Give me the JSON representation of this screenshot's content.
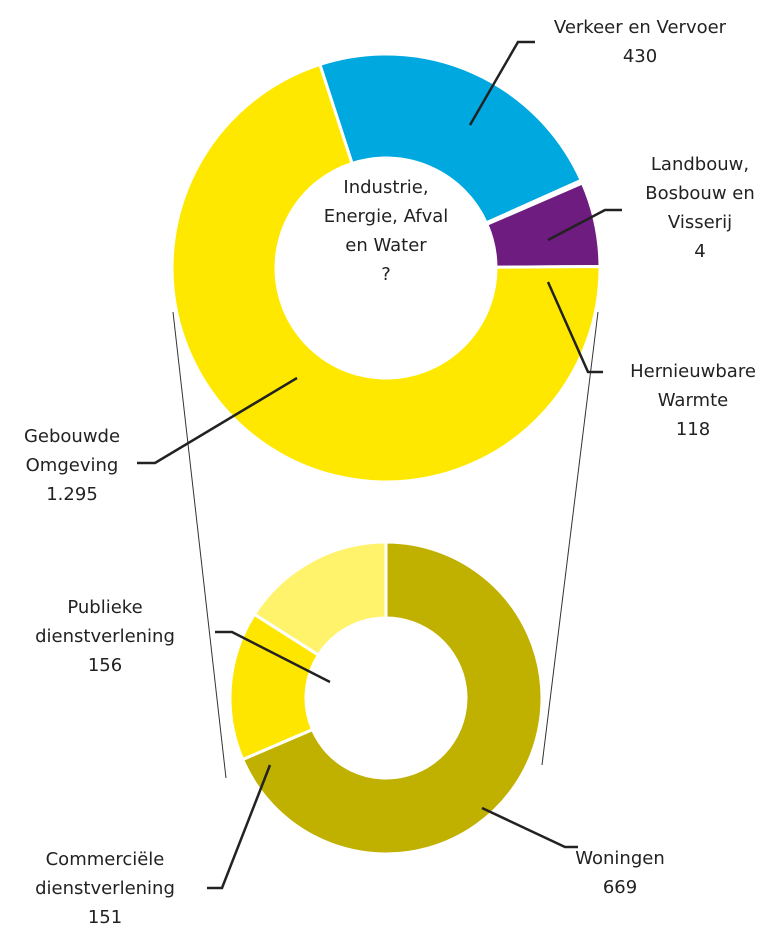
{
  "chart_data": [
    {
      "type": "donut",
      "center_label": "Industrie, Energie, Afval en Water",
      "center_value": "?",
      "categories": [
        "Verkeer en Vervoer",
        "Landbouw, Bosbouw en Visserij",
        "Hernieuwbare Warmte",
        "Gebouwde Omgeving"
      ],
      "values": [
        430,
        4,
        118,
        1295
      ],
      "value_labels": [
        "430",
        "4",
        "118",
        "1.295"
      ],
      "colors": [
        "#00a8e0",
        "#00a8e0",
        "#6e1c80",
        "#ffe800"
      ]
    },
    {
      "type": "donut",
      "categories": [
        "Woningen",
        "Commerciële dienstverlening",
        "Publieke dienstverlening"
      ],
      "values": [
        669,
        151,
        156
      ],
      "colors": [
        "#c0b000",
        "#ffe600",
        "#fff36b"
      ]
    }
  ]
}
